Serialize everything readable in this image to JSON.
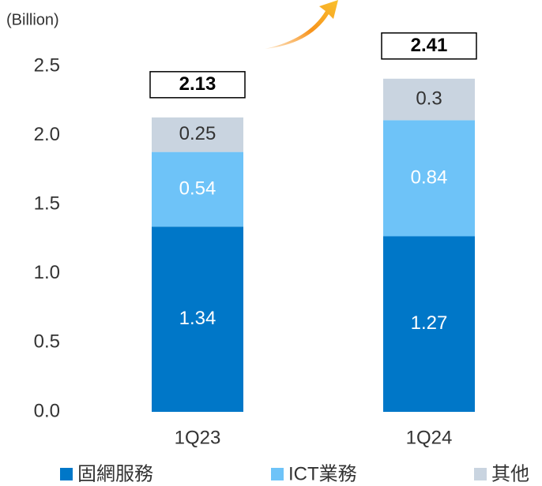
{
  "chart_data": {
    "type": "stacked_bar",
    "unit_label": "(Billion)",
    "categories": [
      "1Q23",
      "1Q24"
    ],
    "series": [
      {
        "name": "固網服務",
        "color": "#0077c8",
        "label_color": "#ffffff",
        "values": [
          1.34,
          1.27
        ]
      },
      {
        "name": "ICT業務",
        "color": "#6ec3f8",
        "label_color": "#ffffff",
        "values": [
          0.54,
          0.84
        ]
      },
      {
        "name": "其他",
        "color": "#c9d4e0",
        "label_color": "#333333",
        "values": [
          0.25,
          0.3
        ]
      }
    ],
    "totals": [
      2.13,
      2.41
    ],
    "ylim": [
      0,
      2.5
    ],
    "yticks": [
      {
        "value": 0,
        "label": "0.0"
      },
      0.5,
      {
        "value": 1,
        "label": "1.0"
      },
      1.5,
      {
        "value": 2,
        "label": "2.0"
      },
      2.5
    ],
    "legend": "bottom"
  }
}
